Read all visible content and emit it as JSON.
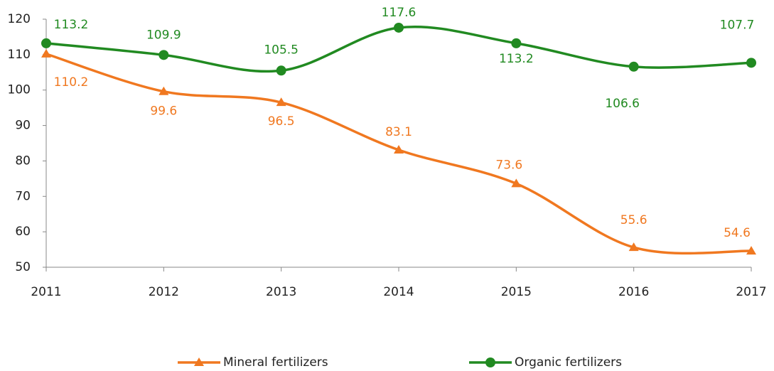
{
  "chart_data": {
    "type": "line",
    "categories": [
      "2011",
      "2012",
      "2013",
      "2014",
      "2015",
      "2016",
      "2017"
    ],
    "series": [
      {
        "name": "Mineral fertilizers",
        "color": "#f07820",
        "marker": "triangle",
        "values": [
          110.2,
          99.6,
          96.5,
          83.1,
          73.6,
          55.6,
          54.6
        ]
      },
      {
        "name": "Organic fertilizers",
        "color": "#218a21",
        "marker": "circle",
        "values": [
          113.2,
          109.9,
          105.5,
          117.6,
          113.2,
          106.6,
          107.7
        ]
      }
    ],
    "ylim": [
      50,
      120
    ],
    "yticks": [
      50,
      60,
      70,
      80,
      90,
      100,
      110,
      120
    ],
    "grid": false,
    "legend": "bottom",
    "smooth": true
  }
}
